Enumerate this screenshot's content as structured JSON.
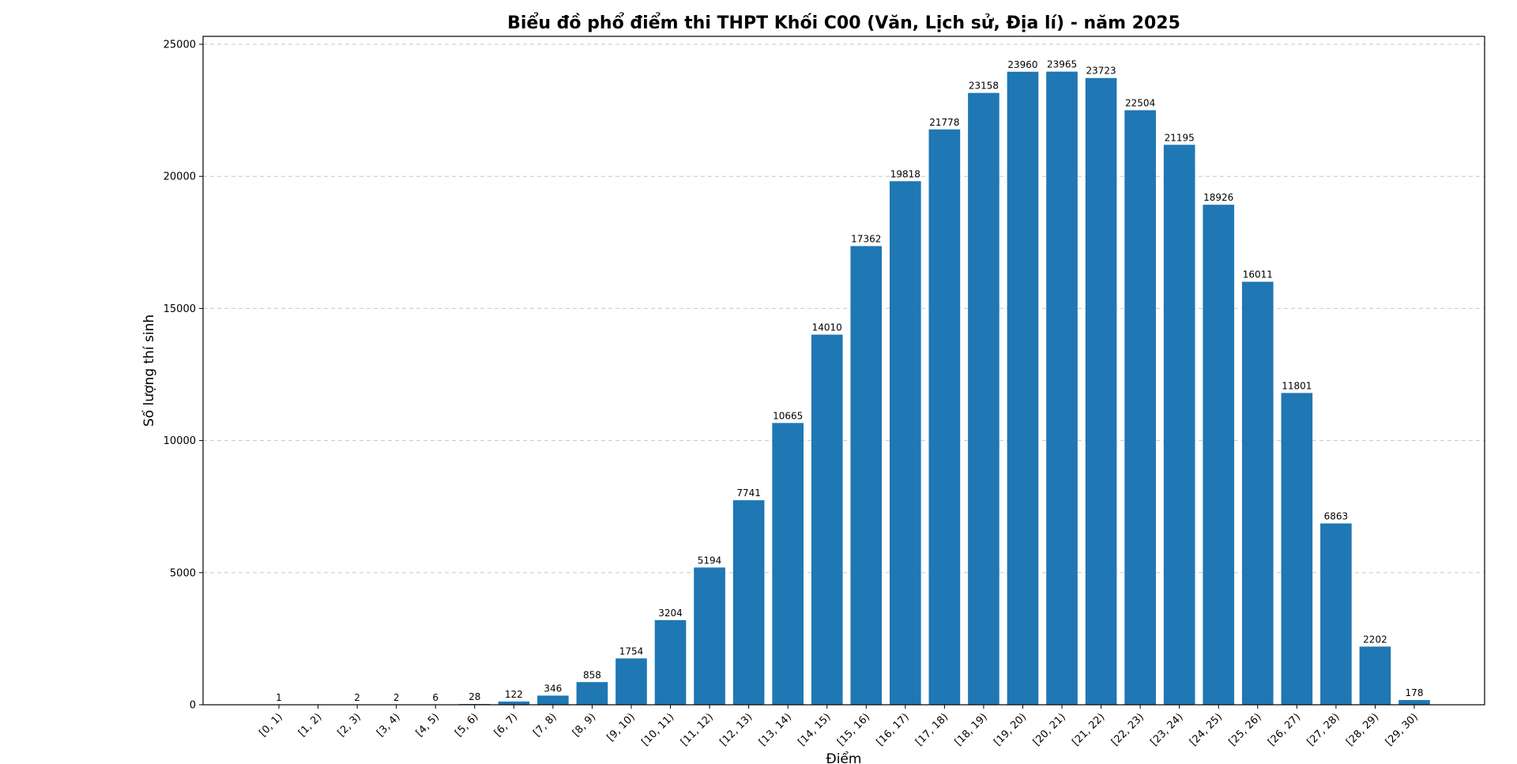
{
  "chart_data": {
    "type": "bar",
    "title": "Biểu đồ phổ điểm thi THPT Khối C00 (Văn, Lịch sử, Địa lí) - năm 2025",
    "xlabel": "Điểm",
    "ylabel": "Số lượng thí sinh",
    "categories": [
      "[0, 1)",
      "[1, 2)",
      "[2, 3)",
      "[3, 4)",
      "[4, 5)",
      "[5, 6)",
      "[6, 7)",
      "[7, 8)",
      "[8, 9)",
      "[9, 10)",
      "[10, 11)",
      "[11, 12)",
      "[12, 13)",
      "[13, 14)",
      "[14, 15)",
      "[15, 16)",
      "[16, 17)",
      "[17, 18)",
      "[18, 19)",
      "[19, 20)",
      "[20, 21)",
      "[21, 22)",
      "[22, 23)",
      "[23, 24)",
      "[24, 25)",
      "[25, 26)",
      "[26, 27)",
      "[27, 28)",
      "[28, 29)",
      "[29, 30)"
    ],
    "values": [
      1,
      0,
      2,
      2,
      6,
      28,
      122,
      346,
      858,
      1754,
      3204,
      5194,
      7741,
      10665,
      14010,
      17362,
      19818,
      21778,
      23158,
      23960,
      23965,
      23723,
      22504,
      21195,
      18926,
      16011,
      11801,
      6863,
      2202,
      178
    ],
    "data_labels": [
      "1",
      "",
      "2",
      "2",
      "6",
      "28",
      "122",
      "346",
      "858",
      "1754",
      "3204",
      "5194",
      "7741",
      "10665",
      "14010",
      "17362",
      "19818",
      "21778",
      "23158",
      "23960",
      "23965",
      "23723",
      "22504",
      "21195",
      "18926",
      "16011",
      "11801",
      "6863",
      "2202",
      "178"
    ],
    "ylim": [
      0,
      25300
    ],
    "yticks": [
      0,
      5000,
      10000,
      15000,
      20000,
      25000
    ],
    "grid": "y-axis dashed",
    "legend": "none",
    "bar_color": "#1f77b4"
  }
}
